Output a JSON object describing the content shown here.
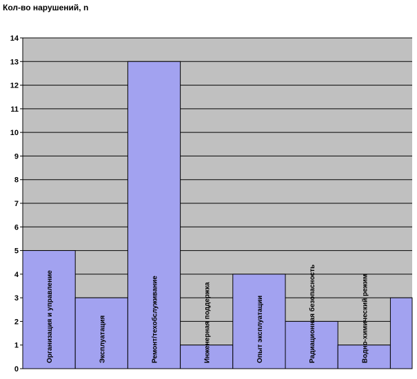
{
  "chart_data": {
    "type": "bar",
    "ylabel": "Кол-во нарушений, n",
    "ylim": [
      0,
      14
    ],
    "y_ticks": [
      "0",
      "1",
      "2",
      "3",
      "4",
      "5",
      "6",
      "7",
      "8",
      "9",
      "10",
      "11",
      "12",
      "13",
      "14"
    ],
    "grid": true,
    "categories": [
      "Организация и управление",
      "Эксплуатация",
      "Ремонт/техобслуживание",
      "Инженерная поддержка",
      "Опыт эксплуатации",
      "Радиационная безопасность",
      "Водно-химический режим",
      ""
    ],
    "values": [
      5,
      3,
      13,
      1,
      4,
      2,
      1,
      3
    ],
    "colors": {
      "plot_bg": "#c0c0c0",
      "bar": "#a2a2f0",
      "gridline": "#000000"
    }
  }
}
